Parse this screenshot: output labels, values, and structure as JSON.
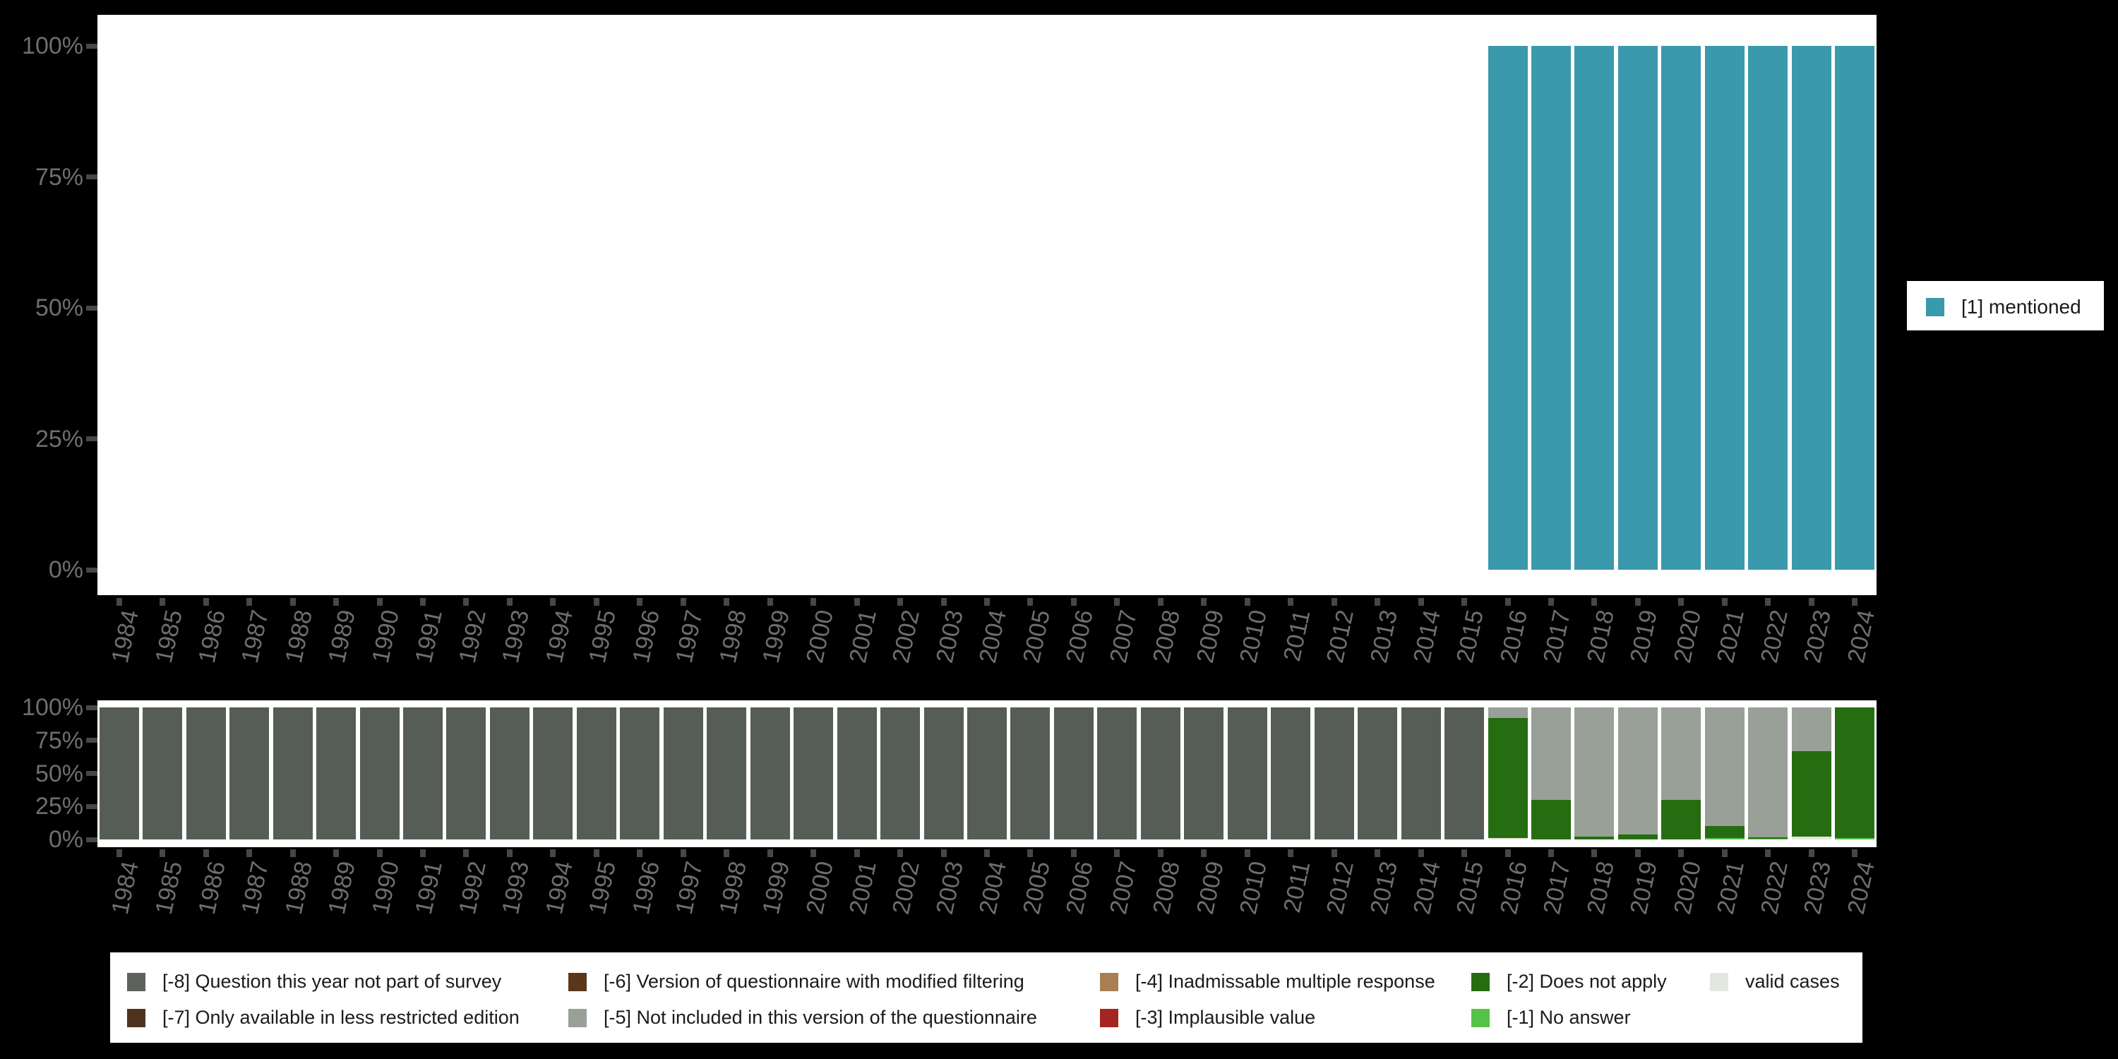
{
  "right_legend": {
    "label": "[1] mentioned",
    "color": "#3b99ad"
  },
  "bottom_legend": {
    "items": [
      {
        "code": "-8",
        "label": "[-8] Question this year not part of survey",
        "color": "#5d635c"
      },
      {
        "code": "-7",
        "label": "[-7] Only available in less restricted edition",
        "color": "#4e341f"
      },
      {
        "code": "-6",
        "label": "[-6] Version of questionnaire with modified filtering",
        "color": "#5a371c"
      },
      {
        "code": "-5",
        "label": "[-5] Not included in this version of the questionnaire",
        "color": "#99a097"
      },
      {
        "code": "-4",
        "label": "[-4] Inadmissable multiple response",
        "color": "#a87e55"
      },
      {
        "code": "-3",
        "label": "[-3] Implausible value",
        "color": "#a42421"
      },
      {
        "code": "-2",
        "label": "[-2] Does not apply",
        "color": "#256d10"
      },
      {
        "code": "-1",
        "label": "[-1] No answer",
        "color": "#57c248"
      },
      {
        "code": "valid",
        "label": "valid cases",
        "color": "#e3e7e0"
      }
    ]
  },
  "chart_data": [
    {
      "type": "bar",
      "title": "",
      "categories": [
        1984,
        1985,
        1986,
        1987,
        1988,
        1989,
        1990,
        1991,
        1992,
        1993,
        1994,
        1995,
        1996,
        1997,
        1998,
        1999,
        2000,
        2001,
        2002,
        2003,
        2004,
        2005,
        2006,
        2007,
        2008,
        2009,
        2010,
        2011,
        2012,
        2013,
        2014,
        2015,
        2016,
        2017,
        2018,
        2019,
        2020,
        2021,
        2022,
        2023,
        2024
      ],
      "xlabel": "",
      "ylabel": "",
      "ylim": [
        0,
        100
      ],
      "y_tick_labels": [
        "100%",
        "75%",
        "50%",
        "25%",
        "0%"
      ],
      "grid": false,
      "legend_position": "right",
      "series": [
        {
          "name": "[1] mentioned",
          "color": "#3b99ad",
          "values": [
            0,
            0,
            0,
            0,
            0,
            0,
            0,
            0,
            0,
            0,
            0,
            0,
            0,
            0,
            0,
            0,
            0,
            0,
            0,
            0,
            0,
            0,
            0,
            0,
            0,
            0,
            0,
            0,
            0,
            0,
            0,
            0,
            100,
            100,
            100,
            100,
            100,
            100,
            100,
            100,
            100
          ]
        }
      ]
    },
    {
      "type": "bar",
      "stacked": true,
      "stack_order": "bottom-to-top",
      "title": "",
      "categories": [
        1984,
        1985,
        1986,
        1987,
        1988,
        1989,
        1990,
        1991,
        1992,
        1993,
        1994,
        1995,
        1996,
        1997,
        1998,
        1999,
        2000,
        2001,
        2002,
        2003,
        2004,
        2005,
        2006,
        2007,
        2008,
        2009,
        2010,
        2011,
        2012,
        2013,
        2014,
        2015,
        2016,
        2017,
        2018,
        2019,
        2020,
        2021,
        2022,
        2023,
        2024
      ],
      "xlabel": "",
      "ylabel": "",
      "ylim": [
        0,
        100
      ],
      "y_tick_labels": [
        "100%",
        "75%",
        "50%",
        "25%",
        "0%"
      ],
      "grid": false,
      "legend_position": "bottom",
      "series": [
        {
          "name": "valid cases",
          "color": "#e3e7e0",
          "values": [
            0,
            0,
            0,
            0,
            0,
            0,
            0,
            0,
            0,
            0,
            0,
            0,
            0,
            0,
            0,
            0,
            0,
            0,
            0,
            0,
            0,
            0,
            0,
            0,
            0,
            0,
            0,
            0,
            0,
            0,
            0,
            0,
            1,
            0,
            0,
            0,
            0,
            0,
            0,
            2,
            0
          ]
        },
        {
          "name": "[-1] No answer",
          "color": "#57c248",
          "values": [
            0,
            0,
            0,
            0,
            0,
            0,
            0,
            0,
            0,
            0,
            0,
            0,
            0,
            0,
            0,
            0,
            0,
            0,
            0,
            0,
            0,
            0,
            0,
            0,
            0,
            0,
            0,
            0,
            0,
            0,
            0,
            0,
            0,
            0,
            0,
            0,
            0,
            1,
            0.5,
            0,
            1
          ]
        },
        {
          "name": "[-2] Does not apply",
          "color": "#256d10",
          "values": [
            0,
            0,
            0,
            0,
            0,
            0,
            0,
            0,
            0,
            0,
            0,
            0,
            0,
            0,
            0,
            0,
            0,
            0,
            0,
            0,
            0,
            0,
            0,
            0,
            0,
            0,
            0,
            0,
            0,
            0,
            0,
            0,
            91,
            30,
            2,
            4,
            30,
            9,
            1,
            65,
            99
          ]
        },
        {
          "name": "[-5] Not included in this version of the questionnaire",
          "color": "#99a097",
          "values": [
            0,
            0,
            0,
            0,
            0,
            0,
            0,
            0,
            0,
            0,
            0,
            0,
            0,
            0,
            0,
            0,
            0,
            0,
            0,
            0,
            0,
            0,
            0,
            0,
            0,
            0,
            0,
            0,
            0,
            0,
            0,
            0,
            8,
            70,
            98,
            96,
            70,
            90,
            98.5,
            33,
            0
          ]
        },
        {
          "name": "[-8] Question this year not part of survey",
          "color": "#565d56",
          "values": [
            100,
            100,
            100,
            100,
            100,
            100,
            100,
            100,
            100,
            100,
            100,
            100,
            100,
            100,
            100,
            100,
            100,
            100,
            100,
            100,
            100,
            100,
            100,
            100,
            100,
            100,
            100,
            100,
            100,
            100,
            100,
            100,
            0,
            0,
            0,
            0,
            0,
            0,
            0,
            0,
            0
          ]
        }
      ]
    }
  ]
}
